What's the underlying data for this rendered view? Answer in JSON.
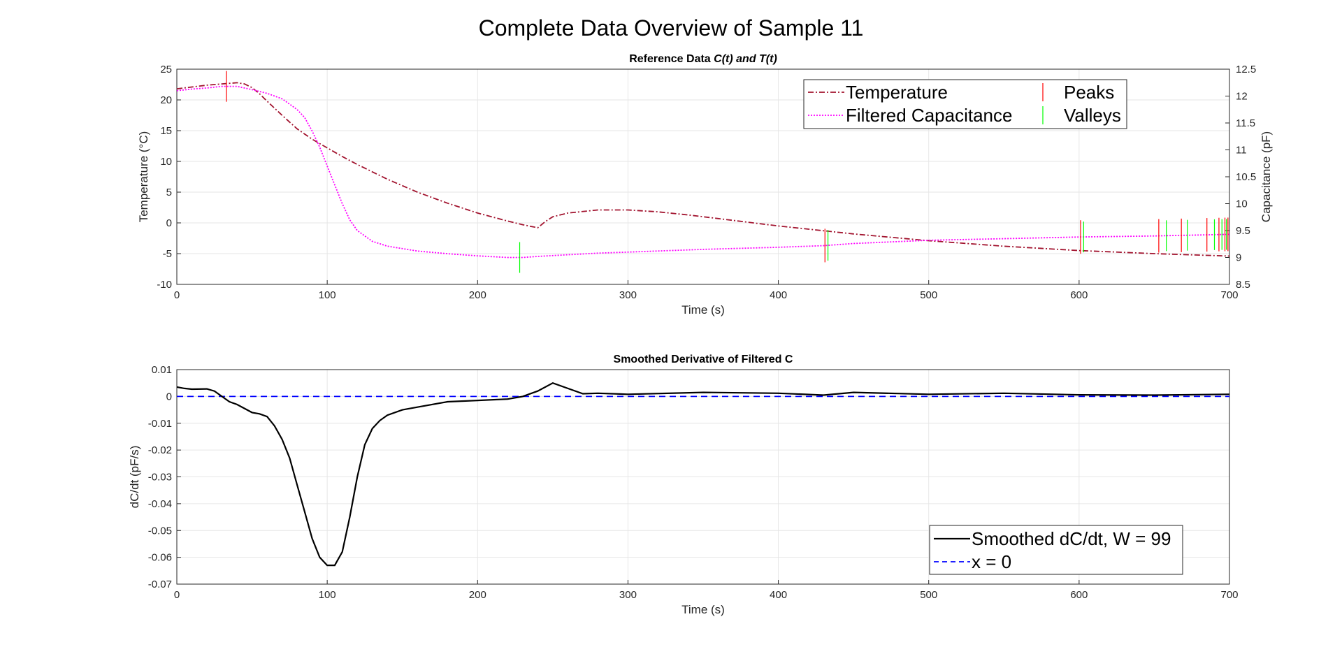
{
  "figure": {
    "title": "Complete Data Overview of Sample 11"
  },
  "chart_data": [
    {
      "type": "line",
      "title_prefix": "Reference Data ",
      "title_italic": "C(t) and T(t)",
      "xlabel": "Time (s)",
      "ylabel": "Temperature (°C)",
      "ylabel_right": "Capacitance (pF)",
      "xlim": [
        0,
        700
      ],
      "ylim": [
        -10,
        25
      ],
      "ylim_right": [
        8.5,
        12.5
      ],
      "xticks": [
        0,
        100,
        200,
        300,
        400,
        500,
        600,
        700
      ],
      "yticks": [
        -10,
        -5,
        0,
        5,
        10,
        15,
        20,
        25
      ],
      "yticks_right": [
        "8.5",
        "9",
        "9.5",
        "10",
        "10.5",
        "11",
        "11.5",
        "12",
        "12.5"
      ],
      "grid": true,
      "legend_position": "top-right",
      "series": [
        {
          "name": "Temperature",
          "axis": "left",
          "color": "#A2142F",
          "style": "dash-dot",
          "x": [
            0,
            10,
            20,
            30,
            40,
            45,
            50,
            55,
            60,
            70,
            80,
            90,
            100,
            110,
            120,
            140,
            160,
            180,
            200,
            220,
            230,
            240,
            245,
            250,
            260,
            280,
            300,
            320,
            340,
            360,
            380,
            400,
            450,
            500,
            550,
            600,
            650,
            700
          ],
          "values": [
            21.8,
            22.1,
            22.4,
            22.6,
            22.8,
            22.6,
            22.0,
            21.0,
            19.8,
            17.5,
            15.3,
            13.6,
            12.2,
            10.8,
            9.5,
            7.1,
            5.0,
            3.2,
            1.6,
            0.3,
            -0.3,
            -0.8,
            0.2,
            1.0,
            1.6,
            2.1,
            2.1,
            1.8,
            1.3,
            0.7,
            0.1,
            -0.5,
            -1.8,
            -2.9,
            -3.8,
            -4.5,
            -5.0,
            -5.4
          ]
        },
        {
          "name": "Filtered Capacitance",
          "axis": "right",
          "color": "#FF00FF",
          "style": "dotted",
          "x": [
            0,
            10,
            20,
            30,
            40,
            50,
            60,
            70,
            75,
            80,
            85,
            90,
            95,
            100,
            105,
            110,
            115,
            120,
            130,
            140,
            160,
            180,
            200,
            220,
            230,
            240,
            260,
            280,
            300,
            350,
            400,
            430,
            450,
            500,
            550,
            600,
            650,
            700
          ],
          "values": [
            12.1,
            12.13,
            12.15,
            12.18,
            12.18,
            12.12,
            12.05,
            11.95,
            11.85,
            11.75,
            11.6,
            11.35,
            11.05,
            10.7,
            10.35,
            10.0,
            9.7,
            9.5,
            9.3,
            9.21,
            9.12,
            9.07,
            9.03,
            9.0,
            9.0,
            9.02,
            9.05,
            9.08,
            9.1,
            9.15,
            9.19,
            9.22,
            9.26,
            9.32,
            9.35,
            9.38,
            9.4,
            9.43
          ]
        }
      ],
      "peaks": {
        "name": "Peaks",
        "color": "#FF0000",
        "x": [
          33,
          431,
          601,
          653,
          668,
          685,
          693,
          697,
          699
        ]
      },
      "valleys": {
        "name": "Valleys",
        "color": "#00FF00",
        "x": [
          228,
          433,
          603,
          658,
          672,
          690,
          695,
          698
        ]
      }
    },
    {
      "type": "line",
      "title": "Smoothed Derivative of Filtered C",
      "xlabel": "Time (s)",
      "ylabel": "dC/dt (pF/s)",
      "xlim": [
        0,
        700
      ],
      "ylim": [
        -0.07,
        0.01
      ],
      "xticks": [
        0,
        100,
        200,
        300,
        400,
        500,
        600,
        700
      ],
      "yticks": [
        "-0.07",
        "-0.06",
        "-0.05",
        "-0.04",
        "-0.03",
        "-0.02",
        "-0.01",
        "0",
        "0.01"
      ],
      "grid": true,
      "legend_position": "bottom-right",
      "series": [
        {
          "name": "Smoothed dC/dt, W = 99",
          "color": "#000000",
          "style": "solid",
          "x": [
            0,
            5,
            10,
            20,
            25,
            30,
            35,
            40,
            50,
            55,
            60,
            65,
            70,
            75,
            80,
            85,
            90,
            95,
            100,
            105,
            110,
            115,
            120,
            125,
            130,
            135,
            140,
            150,
            160,
            180,
            200,
            220,
            230,
            240,
            250,
            260,
            270,
            280,
            300,
            350,
            400,
            430,
            450,
            500,
            550,
            600,
            650,
            700
          ],
          "values": [
            0.0035,
            0.003,
            0.0027,
            0.0028,
            0.002,
            0.0,
            -0.002,
            -0.003,
            -0.006,
            -0.0065,
            -0.0075,
            -0.011,
            -0.016,
            -0.023,
            -0.033,
            -0.043,
            -0.053,
            -0.06,
            -0.063,
            -0.063,
            -0.058,
            -0.045,
            -0.03,
            -0.018,
            -0.012,
            -0.009,
            -0.007,
            -0.005,
            -0.004,
            -0.002,
            -0.0015,
            -0.001,
            0.0,
            0.002,
            0.005,
            0.003,
            0.001,
            0.0012,
            0.0008,
            0.0015,
            0.0012,
            0.0005,
            0.0015,
            0.0008,
            0.0012,
            0.0006,
            0.0005,
            0.0008
          ]
        },
        {
          "name": "x = 0",
          "color": "#0000FF",
          "style": "dashed",
          "x": [
            0,
            700
          ],
          "values": [
            0,
            0
          ]
        }
      ]
    }
  ]
}
